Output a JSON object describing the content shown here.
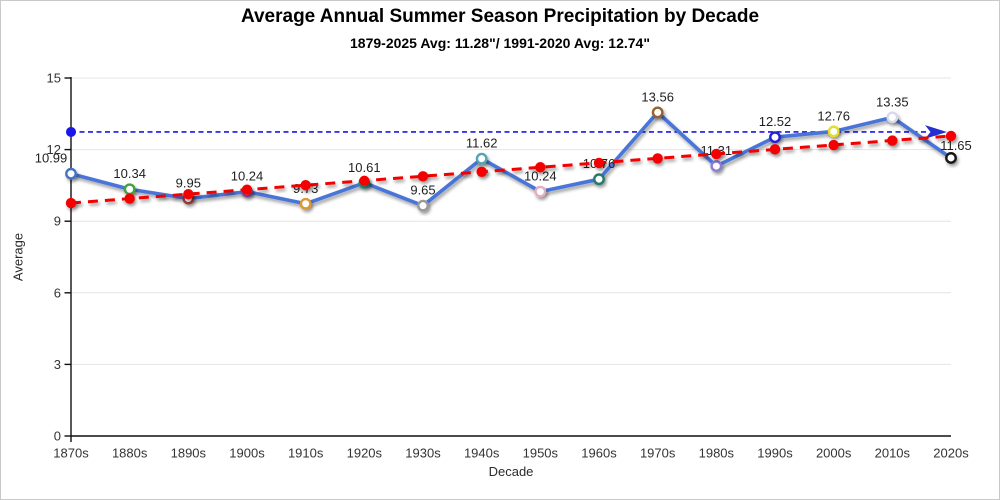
{
  "chart_data": {
    "type": "line",
    "title": "Average Annual Summer Season Precipitation by Decade",
    "subtitle": "1879-2025 Avg: 11.28\"/ 1991-2020 Avg: 12.74\"",
    "xlabel": "Decade",
    "ylabel": "Average",
    "categories": [
      "1870s",
      "1880s",
      "1890s",
      "1900s",
      "1910s",
      "1920s",
      "1930s",
      "1940s",
      "1950s",
      "1960s",
      "1970s",
      "1980s",
      "1990s",
      "2000s",
      "2010s",
      "2020s"
    ],
    "yticks": [
      0,
      3,
      6,
      9,
      12,
      15
    ],
    "ylim": [
      0,
      15
    ],
    "grid": true,
    "legend": "none",
    "gridline_color": "#e4e4e4",
    "axis_color": "#111111",
    "tick_label_color": "#333333",
    "data_label_color": "#1f1f1f",
    "series": [
      {
        "name": "decade-average-precipitation",
        "type": "line-with-markers",
        "color": "#4a74d8",
        "values": [
          10.99,
          10.34,
          9.95,
          10.24,
          9.73,
          10.61,
          9.65,
          11.62,
          10.24,
          10.76,
          13.56,
          11.31,
          12.52,
          12.76,
          13.35,
          11.65
        ],
        "marker_fill": "#ffffff",
        "marker_colors": [
          "#4472c4",
          "#3fa33f",
          "#9e3a38",
          "#9b59b6",
          "#e0972e",
          "#2aa08a",
          "#9a9a9a",
          "#57a3b4",
          "#e5aec0",
          "#217a6a",
          "#96622e",
          "#8e7cd8",
          "#2323d6",
          "#e3de2a",
          "#d9d9ea",
          "#141414"
        ]
      },
      {
        "name": "linear-trend",
        "type": "dashed-line-with-dots",
        "color": "#f40000",
        "values": [
          9.76,
          9.95,
          10.13,
          10.32,
          10.51,
          10.69,
          10.88,
          11.07,
          11.26,
          11.44,
          11.63,
          11.82,
          12.01,
          12.19,
          12.38,
          12.57
        ]
      },
      {
        "name": "1991-2020-average-reference",
        "type": "dashed-reference-line",
        "color": "#1a16e8",
        "arrow_color": "#2330cf",
        "value": 12.74
      }
    ]
  }
}
